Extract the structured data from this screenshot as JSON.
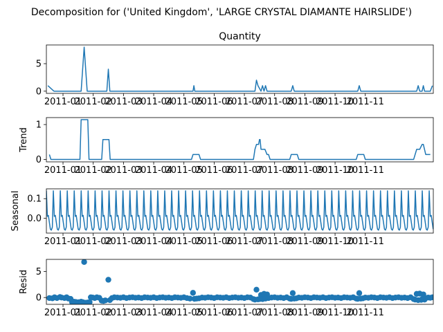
{
  "chart_data": {
    "suptitle": "Decomposition for ('United Kingdom', 'LARGE CRYSTAL DIAMANTE HAIRSLIDE')",
    "type": "line",
    "color": "#1f77b4",
    "x_tick_labels": [
      "2011-01",
      "2011-02",
      "2011-03",
      "2011-04",
      "2011-05",
      "2011-06",
      "2011-07",
      "2011-08",
      "2011-09",
      "2011-10",
      "2011-11"
    ],
    "panels": [
      {
        "name": "observed",
        "type": "line",
        "title": "Quantity",
        "ylabel": "",
        "ylim": [
          -0.4,
          8.4
        ],
        "yticks": [
          "0",
          "5"
        ],
        "ytick_values": [
          0,
          5
        ],
        "points": [
          [
            -0.5,
            1
          ],
          [
            -0.3,
            0
          ],
          [
            0,
            0
          ],
          [
            0.6,
            0
          ],
          [
            0.7,
            8
          ],
          [
            0.8,
            0
          ],
          [
            1.3,
            0
          ],
          [
            1.45,
            0
          ],
          [
            1.5,
            4
          ],
          [
            1.55,
            0
          ],
          [
            4.3,
            0
          ],
          [
            4.33,
            1
          ],
          [
            4.36,
            0
          ],
          [
            6.35,
            0
          ],
          [
            6.4,
            2
          ],
          [
            6.45,
            1
          ],
          [
            6.55,
            0
          ],
          [
            6.6,
            1
          ],
          [
            6.65,
            0
          ],
          [
            6.7,
            1
          ],
          [
            6.75,
            0
          ],
          [
            7.55,
            0
          ],
          [
            7.6,
            1
          ],
          [
            7.65,
            0
          ],
          [
            9.75,
            0
          ],
          [
            9.8,
            1
          ],
          [
            9.85,
            0
          ],
          [
            11.7,
            0
          ],
          [
            11.75,
            1
          ],
          [
            11.8,
            0
          ],
          [
            11.88,
            0
          ],
          [
            11.92,
            1
          ],
          [
            11.96,
            0
          ],
          [
            12.15,
            0
          ],
          [
            12.22,
            1
          ]
        ]
      },
      {
        "name": "trend",
        "type": "line",
        "title": "",
        "ylabel": "Trend",
        "ylim": [
          -0.07,
          1.2
        ],
        "yticks": [
          "0",
          "1"
        ],
        "ytick_values": [
          0,
          1
        ],
        "points": [
          [
            -0.45,
            0.14
          ],
          [
            -0.4,
            0
          ],
          [
            0,
            0
          ],
          [
            0.56,
            0
          ],
          [
            0.6,
            1.14
          ],
          [
            0.82,
            1.14
          ],
          [
            0.86,
            0
          ],
          [
            1.28,
            0
          ],
          [
            1.32,
            0.57
          ],
          [
            1.52,
            0.57
          ],
          [
            1.56,
            0
          ],
          [
            4.25,
            0
          ],
          [
            4.3,
            0.14
          ],
          [
            4.5,
            0.14
          ],
          [
            4.55,
            0
          ],
          [
            6.3,
            0
          ],
          [
            6.35,
            0.29
          ],
          [
            6.4,
            0.43
          ],
          [
            6.47,
            0.43
          ],
          [
            6.5,
            0.57
          ],
          [
            6.52,
            0.57
          ],
          [
            6.55,
            0.29
          ],
          [
            6.68,
            0.29
          ],
          [
            6.75,
            0.14
          ],
          [
            6.8,
            0.14
          ],
          [
            6.85,
            0
          ],
          [
            7.5,
            0
          ],
          [
            7.55,
            0.14
          ],
          [
            7.75,
            0.14
          ],
          [
            7.8,
            0
          ],
          [
            9.7,
            0
          ],
          [
            9.75,
            0.14
          ],
          [
            9.95,
            0.14
          ],
          [
            10,
            0
          ],
          [
            11.6,
            0
          ],
          [
            11.7,
            0.29
          ],
          [
            11.8,
            0.29
          ],
          [
            11.88,
            0.43
          ],
          [
            11.92,
            0.43
          ],
          [
            12,
            0.14
          ],
          [
            12.15,
            0.14
          ]
        ]
      },
      {
        "name": "seasonal",
        "type": "line",
        "title": "",
        "ylabel": "Seasonal",
        "ylim": [
          -0.075,
          0.15
        ],
        "yticks": [
          "0.0",
          "0.1"
        ],
        "ytick_values": [
          0.0,
          0.1
        ],
        "seasonal_pattern": [
          0.14,
          0.01,
          0.015,
          -0.02,
          -0.055,
          -0.06,
          -0.045
        ],
        "seasonal_period": 7,
        "seasonal_start": -0.55,
        "seasonal_end": 12.25
      },
      {
        "name": "resid",
        "type": "scatter",
        "title": "",
        "ylabel": "Resid",
        "ylim": [
          -1.3,
          7.3
        ],
        "yticks": [
          "0",
          "5"
        ],
        "ytick_values": [
          0,
          5
        ],
        "points": [
          [
            -0.45,
            -0.1
          ],
          [
            -0.35,
            -0.15
          ],
          [
            -0.28,
            0.05
          ],
          [
            -0.2,
            -0.1
          ],
          [
            -0.1,
            0.1
          ],
          [
            -0.05,
            0
          ],
          [
            0.05,
            -0.1
          ],
          [
            0.12,
            0.05
          ],
          [
            0.18,
            -0.2
          ],
          [
            0.25,
            -0.25
          ],
          [
            0.3,
            -0.9
          ],
          [
            0.36,
            -0.8
          ],
          [
            0.42,
            -0.85
          ],
          [
            0.52,
            -0.9
          ],
          [
            0.6,
            -0.8
          ],
          [
            0.66,
            -0.9
          ],
          [
            0.7,
            6.8
          ],
          [
            0.75,
            -1.0
          ],
          [
            0.82,
            -0.95
          ],
          [
            0.88,
            -0.9
          ],
          [
            0.92,
            0.05
          ],
          [
            0.98,
            0
          ],
          [
            1.05,
            -0.1
          ],
          [
            1.12,
            0.05
          ],
          [
            1.2,
            -0.05
          ],
          [
            1.28,
            -0.6
          ],
          [
            1.34,
            -0.65
          ],
          [
            1.4,
            -0.55
          ],
          [
            1.5,
            3.4
          ],
          [
            1.55,
            -0.5
          ],
          [
            1.62,
            -0.1
          ],
          [
            1.7,
            0.05
          ],
          [
            1.8,
            0
          ],
          [
            1.9,
            -0.05
          ],
          [
            2.0,
            0.05
          ],
          [
            2.1,
            -0.1
          ],
          [
            2.2,
            0
          ],
          [
            2.3,
            0.05
          ],
          [
            2.4,
            -0.05
          ],
          [
            2.5,
            0
          ],
          [
            2.6,
            -0.1
          ],
          [
            2.7,
            0.05
          ],
          [
            2.8,
            0
          ],
          [
            2.9,
            -0.05
          ],
          [
            3.0,
            0.05
          ],
          [
            3.1,
            -0.1
          ],
          [
            3.2,
            0
          ],
          [
            3.3,
            0.05
          ],
          [
            3.4,
            -0.05
          ],
          [
            3.5,
            0
          ],
          [
            3.6,
            -0.1
          ],
          [
            3.7,
            0.05
          ],
          [
            3.8,
            0
          ],
          [
            3.9,
            -0.05
          ],
          [
            4.0,
            0.05
          ],
          [
            4.1,
            -0.1
          ],
          [
            4.2,
            -0.2
          ],
          [
            4.3,
            0.9
          ],
          [
            4.35,
            -0.25
          ],
          [
            4.42,
            -0.2
          ],
          [
            4.5,
            -0.15
          ],
          [
            4.6,
            0
          ],
          [
            4.7,
            -0.05
          ],
          [
            4.8,
            0.05
          ],
          [
            4.9,
            0
          ],
          [
            5.0,
            -0.1
          ],
          [
            5.1,
            0.05
          ],
          [
            5.2,
            0
          ],
          [
            5.3,
            -0.05
          ],
          [
            5.4,
            0.05
          ],
          [
            5.5,
            -0.1
          ],
          [
            5.6,
            0
          ],
          [
            5.7,
            0.05
          ],
          [
            5.8,
            -0.05
          ],
          [
            5.9,
            0
          ],
          [
            6.0,
            -0.1
          ],
          [
            6.1,
            0.05
          ],
          [
            6.2,
            0
          ],
          [
            6.3,
            -0.3
          ],
          [
            6.35,
            -0.4
          ],
          [
            6.4,
            1.5
          ],
          [
            6.45,
            -0.35
          ],
          [
            6.5,
            -0.3
          ],
          [
            6.55,
            0.5
          ],
          [
            6.6,
            -0.3
          ],
          [
            6.65,
            0.7
          ],
          [
            6.7,
            -0.2
          ],
          [
            6.75,
            0.6
          ],
          [
            6.8,
            -0.1
          ],
          [
            6.9,
            0
          ],
          [
            7.0,
            0.05
          ],
          [
            7.1,
            -0.05
          ],
          [
            7.2,
            0
          ],
          [
            7.3,
            -0.1
          ],
          [
            7.4,
            0.05
          ],
          [
            7.5,
            -0.2
          ],
          [
            7.55,
            -0.25
          ],
          [
            7.6,
            0.85
          ],
          [
            7.65,
            -0.2
          ],
          [
            7.72,
            -0.15
          ],
          [
            7.8,
            0
          ],
          [
            7.9,
            -0.05
          ],
          [
            8.0,
            0.05
          ],
          [
            8.1,
            0
          ],
          [
            8.2,
            -0.1
          ],
          [
            8.3,
            0.05
          ],
          [
            8.4,
            0
          ],
          [
            8.5,
            -0.05
          ],
          [
            8.6,
            0.05
          ],
          [
            8.7,
            -0.1
          ],
          [
            8.8,
            0
          ],
          [
            8.9,
            0.05
          ],
          [
            9.0,
            -0.05
          ],
          [
            9.1,
            0
          ],
          [
            9.2,
            -0.1
          ],
          [
            9.3,
            0.05
          ],
          [
            9.4,
            0
          ],
          [
            9.5,
            -0.05
          ],
          [
            9.6,
            0.05
          ],
          [
            9.7,
            -0.2
          ],
          [
            9.75,
            -0.25
          ],
          [
            9.8,
            0.85
          ],
          [
            9.85,
            -0.2
          ],
          [
            9.92,
            -0.15
          ],
          [
            10.0,
            0
          ],
          [
            10.1,
            -0.05
          ],
          [
            10.2,
            0.05
          ],
          [
            10.3,
            0
          ],
          [
            10.4,
            -0.1
          ],
          [
            10.5,
            0.05
          ],
          [
            10.6,
            0
          ],
          [
            10.7,
            -0.05
          ],
          [
            10.8,
            0.05
          ],
          [
            10.9,
            -0.1
          ],
          [
            11.0,
            0
          ],
          [
            11.1,
            0.05
          ],
          [
            11.2,
            -0.05
          ],
          [
            11.3,
            0
          ],
          [
            11.4,
            -0.1
          ],
          [
            11.5,
            0.05
          ],
          [
            11.6,
            -0.3
          ],
          [
            11.65,
            -0.4
          ],
          [
            11.7,
            0.7
          ],
          [
            11.75,
            -0.5
          ],
          [
            11.8,
            0.75
          ],
          [
            11.85,
            -0.45
          ],
          [
            11.88,
            -0.3
          ],
          [
            11.92,
            0.6
          ],
          [
            11.96,
            -0.4
          ],
          [
            12.0,
            -0.1
          ],
          [
            12.08,
            0
          ],
          [
            12.15,
            -0.05
          ],
          [
            12.22,
            0.05
          ]
        ]
      }
    ]
  }
}
